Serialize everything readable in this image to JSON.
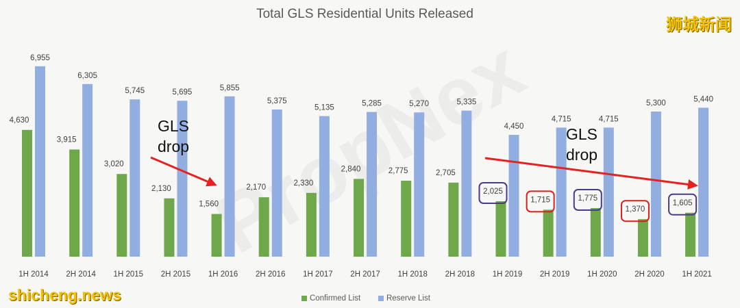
{
  "title": "Total GLS Residential Units Released",
  "brand_cn": "狮城新闻",
  "site": "shicheng.news",
  "watermark": "PropNex",
  "colors": {
    "confirmed": "#6fa84a",
    "reserve": "#92aee0",
    "circle_purple": "#4b3a8c",
    "circle_red": "#e01b1b",
    "arrow": "#e52222"
  },
  "chart_data": {
    "type": "bar",
    "categories": [
      "1H 2014",
      "2H 2014",
      "1H 2015",
      "2H 2015",
      "1H 2016",
      "2H 2016",
      "1H 2017",
      "2H 2017",
      "1H 2018",
      "2H 2018",
      "1H 2019",
      "2H 2019",
      "1H 2020",
      "2H 2020",
      "1H 2021"
    ],
    "series": [
      {
        "name": "Confirmed List",
        "values": [
          4630,
          3915,
          3020,
          2130,
          1560,
          2170,
          2330,
          2840,
          2775,
          2705,
          2025,
          1715,
          1775,
          1370,
          1605
        ]
      },
      {
        "name": "Reserve List",
        "values": [
          6955,
          6305,
          5745,
          5695,
          5855,
          5375,
          5135,
          5285,
          5270,
          5335,
          4450,
          4715,
          4715,
          5300,
          5440
        ]
      }
    ],
    "data_labels": {
      "confirmed": [
        "4,630",
        "3,915",
        "3,020",
        "2,130",
        "1,560",
        "2,170",
        "2,330",
        "2,840",
        "2,775",
        "2,705",
        "2,025",
        "1,715",
        "1,775",
        "1,370",
        "1,605"
      ],
      "reserve": [
        "6,955",
        "6,305",
        "5,745",
        "5,695",
        "5,855",
        "5,375",
        "5,135",
        "5,285",
        "5,270",
        "5,335",
        "4,450",
        "4,715",
        "4,715",
        "5,300",
        "5,440"
      ]
    },
    "ylim": [
      0,
      7500
    ],
    "legend_position": "bottom",
    "grid": false,
    "circled": {
      "purple": [
        "1H 2019",
        "1H 2020",
        "1H 2021"
      ],
      "red": [
        "2H 2019",
        "2H 2020"
      ]
    },
    "annotations": [
      {
        "lines": [
          "GLS",
          "drop"
        ],
        "from_category": "1H 2015",
        "to_category": "1H 2016"
      },
      {
        "lines": [
          "GLS",
          "drop"
        ],
        "from_category": "1H 2019",
        "to_category": "1H 2021"
      }
    ]
  }
}
